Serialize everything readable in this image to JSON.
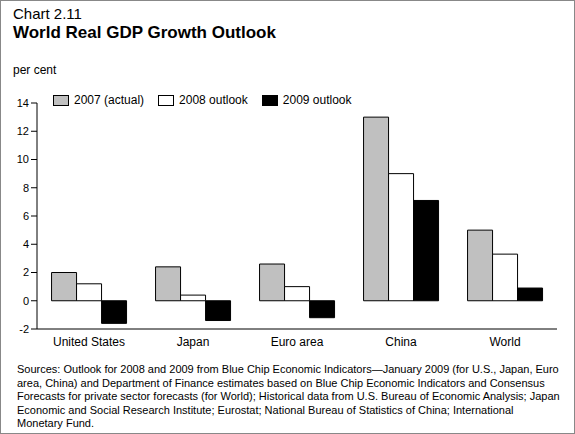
{
  "chart_data": {
    "type": "bar",
    "subtitle": "Chart 2.11",
    "title": "World Real GDP Growth Outlook",
    "y_label": "per cent",
    "categories": [
      "United States",
      "Japan",
      "Euro area",
      "China",
      "World"
    ],
    "series": [
      {
        "name": "2007 (actual)",
        "color": "#c0c0c0",
        "values": [
          2.0,
          2.4,
          2.6,
          13.0,
          5.0
        ]
      },
      {
        "name": "2008 outlook",
        "color": "#ffffff",
        "values": [
          1.2,
          0.4,
          1.0,
          9.0,
          3.3
        ]
      },
      {
        "name": "2009 outlook",
        "color": "#000000",
        "values": [
          -1.6,
          -1.4,
          -1.2,
          7.1,
          0.9
        ]
      }
    ],
    "ylim": [
      -2,
      14
    ],
    "yticks": [
      -2,
      0,
      2,
      4,
      6,
      8,
      10,
      12,
      14
    ],
    "grid": false,
    "legend": "upper left",
    "source": "Sources: Outlook for 2008 and 2009 from Blue Chip Economic Indicators—January 2009 (for U.S., Japan, Euro area, China) and Department of Finance estimates based on Blue Chip Economic Indicators and Consensus Forecasts for private sector forecasts (for World); Historical data from U.S. Bureau of Economic Analysis; Japan Economic and Social Research Institute; Eurostat; National Bureau of Statistics of China; International Monetary Fund."
  }
}
